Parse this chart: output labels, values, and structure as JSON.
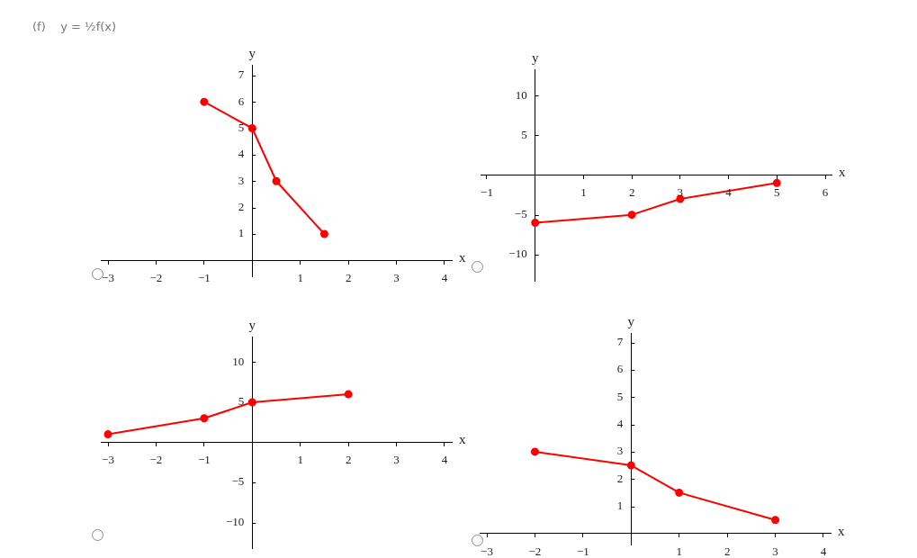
{
  "chart_data": [
    {
      "type": "line",
      "title": "(f)    y = ½f(x)",
      "xlabel": "x",
      "ylabel": "y",
      "xlim": [
        -3.15,
        4.15
      ],
      "ylim": [
        -0.6,
        7.4
      ],
      "xticks": [
        -3,
        -2,
        -1,
        1,
        2,
        3,
        4
      ],
      "yticks": [
        1,
        2,
        3,
        4,
        5,
        6,
        7
      ],
      "x": [
        -1,
        0,
        0.5,
        1.5
      ],
      "series": [
        {
          "color": "#ff0000",
          "values": [
            6,
            5,
            3,
            1
          ]
        }
      ],
      "marker": "circle",
      "grid": false,
      "legend": false
    },
    {
      "type": "line",
      "xlabel": "x",
      "ylabel": "y",
      "xlim": [
        -1.13,
        6.13
      ],
      "ylim": [
        -13.3,
        13.3
      ],
      "xticks": [
        -1,
        1,
        2,
        3,
        4,
        5,
        6
      ],
      "yticks": [
        -10,
        -5,
        5,
        10
      ],
      "x": [
        0,
        2,
        3,
        5
      ],
      "series": [
        {
          "color": "#ff0000",
          "values": [
            -6,
            -5,
            -3,
            -1
          ]
        }
      ],
      "marker": "circle",
      "grid": false,
      "legend": false
    },
    {
      "type": "line",
      "xlabel": "x",
      "ylabel": "y",
      "xlim": [
        -3.15,
        4.15
      ],
      "ylim": [
        -13.2,
        13.2
      ],
      "xticks": [
        -3,
        -2,
        -1,
        1,
        2,
        3,
        4
      ],
      "yticks": [
        -10,
        -5,
        5,
        10
      ],
      "x": [
        -3,
        -1,
        0,
        2
      ],
      "series": [
        {
          "color": "#ff0000",
          "values": [
            1,
            3,
            5,
            6
          ]
        }
      ],
      "marker": "circle",
      "grid": false,
      "legend": false
    },
    {
      "type": "line",
      "xlabel": "x",
      "ylabel": "y",
      "xlim": [
        -3.15,
        4.15
      ],
      "ylim": [
        -0.4,
        7.35
      ],
      "xticks": [
        -3,
        -2,
        -1,
        1,
        2,
        3,
        4
      ],
      "yticks": [
        1,
        2,
        3,
        4,
        5,
        6,
        7
      ],
      "x": [
        -2,
        0,
        1,
        3
      ],
      "series": [
        {
          "color": "#ff0000",
          "values": [
            3,
            2.5,
            1.5,
            0.5
          ]
        }
      ],
      "marker": "circle",
      "grid": false,
      "legend": false
    }
  ]
}
